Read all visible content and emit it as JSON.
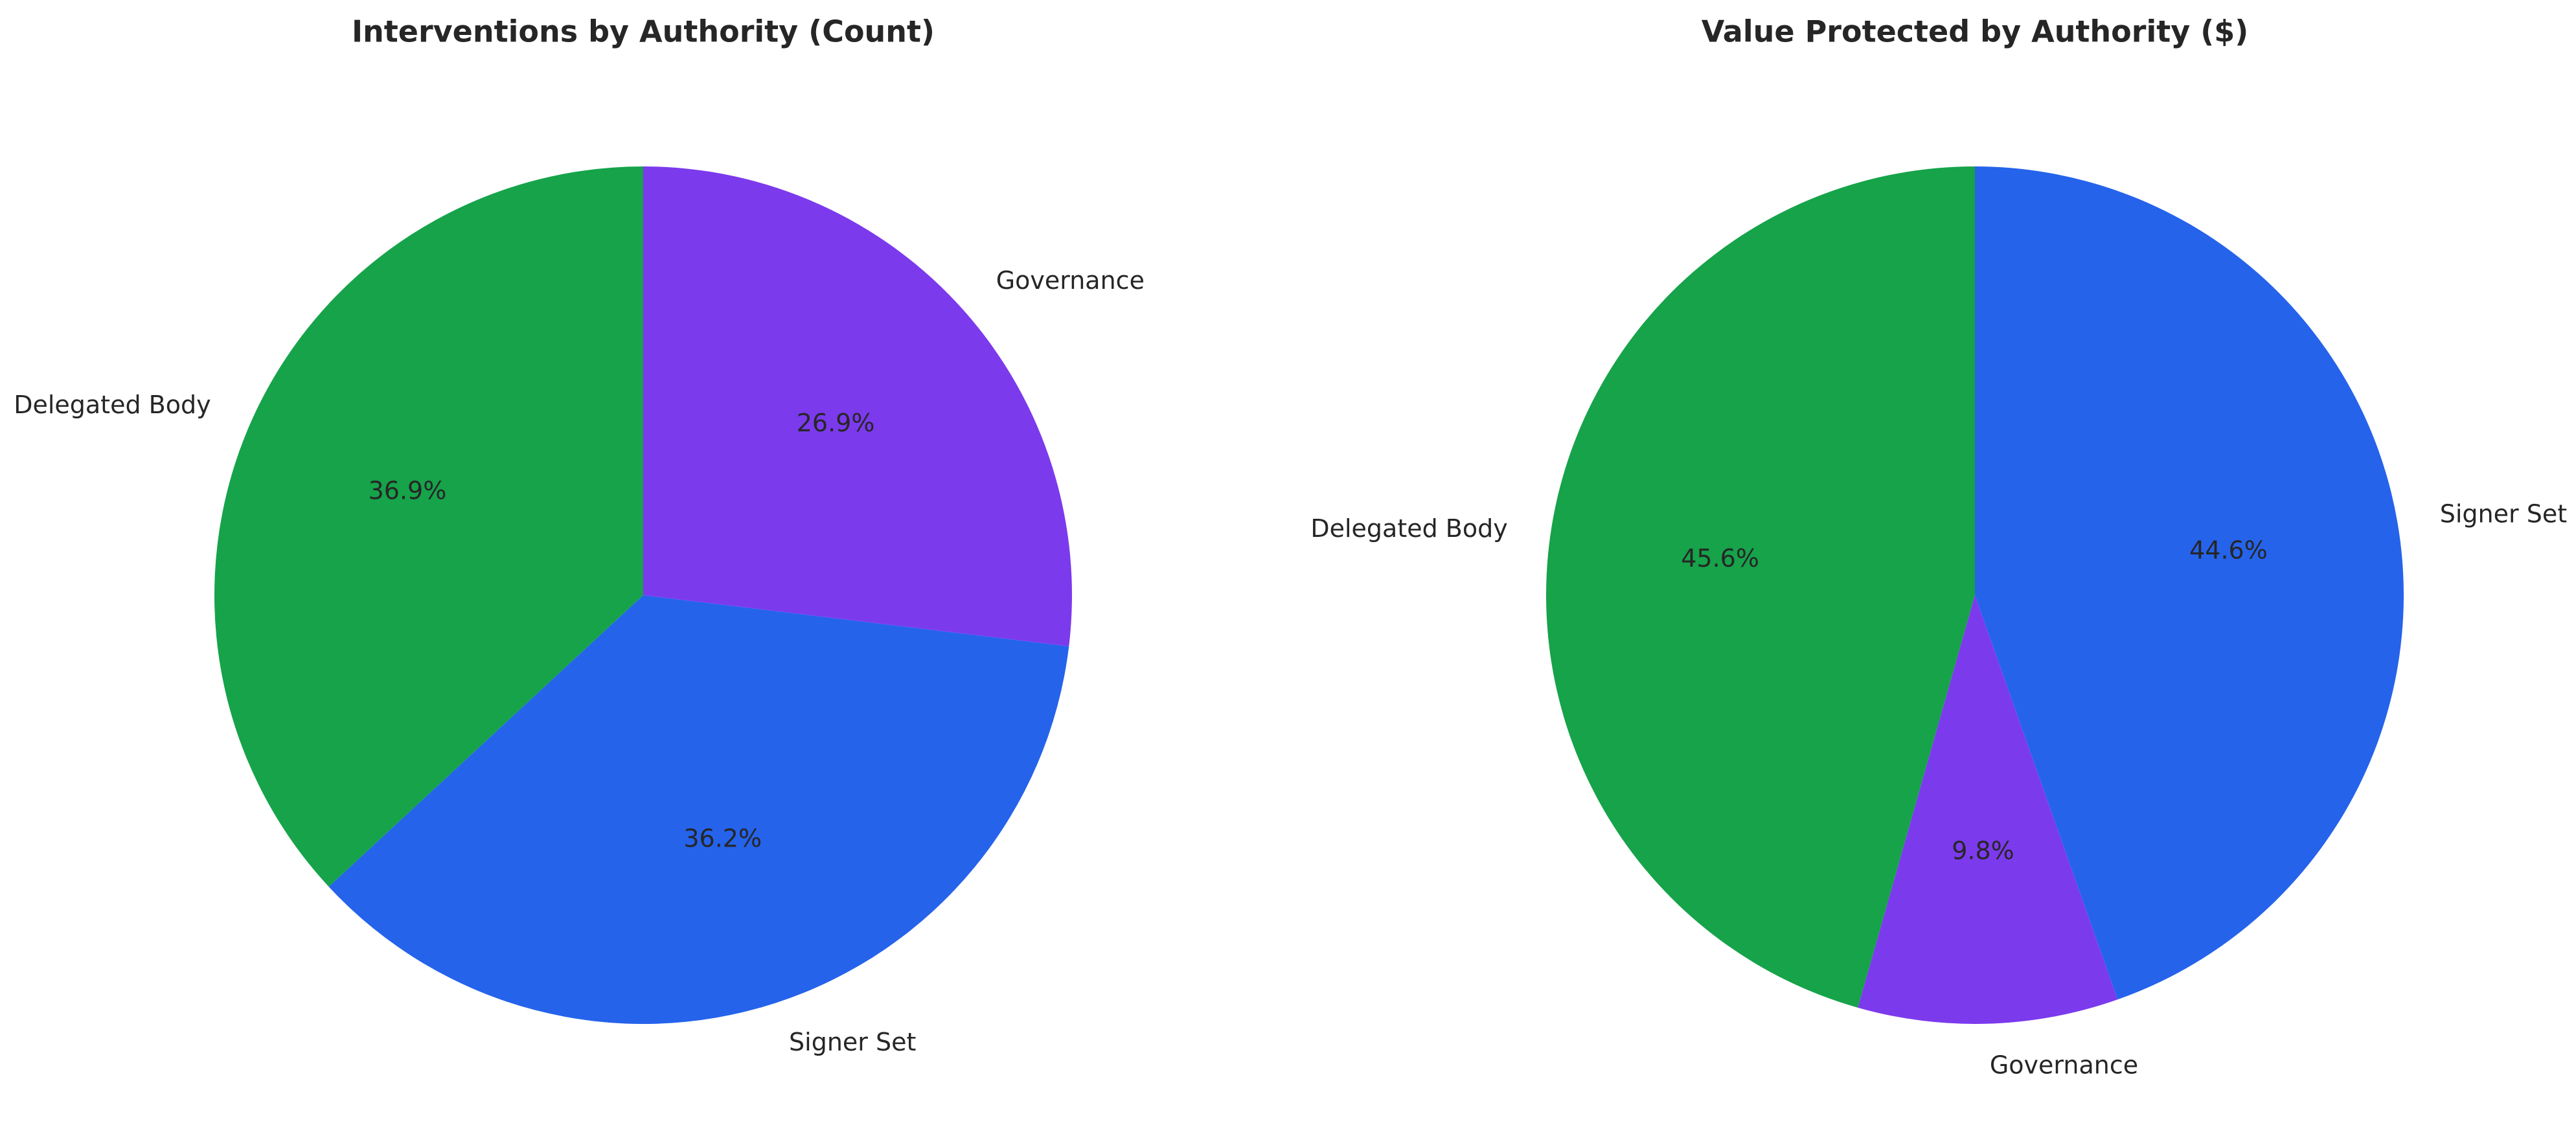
{
  "chart_data": [
    {
      "type": "pie",
      "title": "Interventions by Authority (Count)",
      "categories": [
        "Delegated Body",
        "Signer Set",
        "Governance"
      ],
      "values": [
        36.9,
        36.2,
        26.9
      ],
      "value_labels": [
        "36.9%",
        "36.2%",
        "26.9%"
      ],
      "colors": [
        "#16a34a",
        "#2563eb",
        "#7c3aed"
      ]
    },
    {
      "type": "pie",
      "title": "Value Protected by Authority ($)",
      "categories": [
        "Delegated Body",
        "Governance",
        "Signer Set"
      ],
      "values": [
        45.6,
        9.8,
        44.6
      ],
      "value_labels": [
        "45.6%",
        "9.8%",
        "44.6%"
      ],
      "colors": [
        "#16a34a",
        "#7c3aed",
        "#2563eb"
      ]
    }
  ]
}
